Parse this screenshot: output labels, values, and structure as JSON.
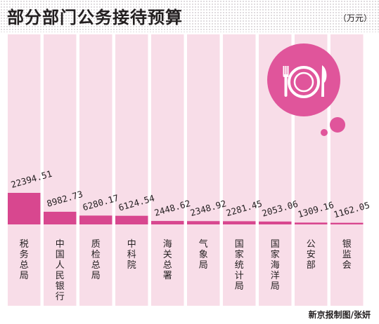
{
  "header": {
    "title": "部分部门公务接待预算",
    "unit": "（万元）"
  },
  "credit": "新京报制图/张妍",
  "colors": {
    "column_bg": "#f8dde8",
    "bar": "#d8478f",
    "accent": "#e0559b",
    "text": "#231f20"
  },
  "icons": [
    "plate-fork-knife-icon"
  ],
  "chart_data": {
    "type": "bar",
    "title": "部分部门公务接待预算",
    "ylabel": "（万元）",
    "xlabel": "",
    "categories": [
      "税务总局",
      "中国人民银行",
      "质检总局",
      "中科院",
      "海关总署",
      "气象局",
      "国家统计局",
      "国家海洋局",
      "公安部",
      "银监会"
    ],
    "values": [
      22394.51,
      8982.73,
      6280.17,
      6124.54,
      2448.62,
      2348.92,
      2281.45,
      2053.06,
      1309.16,
      1162.05
    ],
    "value_labels": [
      "22394.51",
      "8982.73",
      "6280.17",
      "6124.54",
      "2448.62",
      "2348.92",
      "2281.45",
      "2053.06",
      "1309.16",
      "1162.05"
    ],
    "ylim": [
      0,
      22394.51
    ],
    "grid": false,
    "legend": "none"
  }
}
